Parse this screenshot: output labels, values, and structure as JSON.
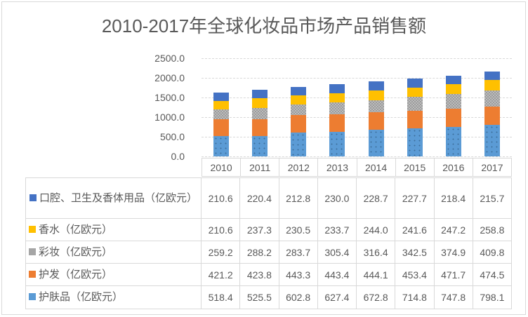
{
  "chart_data": {
    "type": "bar",
    "stacked": true,
    "title": "2010-2017年全球化妆品市场产品销售额",
    "categories": [
      "2010",
      "2011",
      "2012",
      "2013",
      "2014",
      "2015",
      "2016",
      "2017"
    ],
    "series": [
      {
        "key": "skincare",
        "label": "护肤品（亿欧元）",
        "color": "#5B9BD5",
        "pattern": "dots",
        "values": [
          518.4,
          525.5,
          602.8,
          627.4,
          672.8,
          714.8,
          747.8,
          798.1
        ]
      },
      {
        "key": "haircare",
        "label": "护发（亿欧元）",
        "color": "#ED7D31",
        "pattern": "solid",
        "values": [
          421.2,
          423.8,
          443.3,
          443.4,
          444.1,
          453.4,
          471.7,
          474.5
        ]
      },
      {
        "key": "color-makeup",
        "label": "彩妆（亿欧元）",
        "color": "#A5A5A5",
        "pattern": "checker",
        "values": [
          259.2,
          288.2,
          283.7,
          305.4,
          316.4,
          342.5,
          374.9,
          409.8
        ]
      },
      {
        "key": "perfume",
        "label": "香水（亿欧元）",
        "color": "#FFC000",
        "pattern": "solid",
        "values": [
          210.6,
          237.3,
          230.5,
          233.7,
          244.0,
          241.6,
          247.2,
          258.8
        ]
      },
      {
        "key": "oral-hygiene",
        "label": "口腔、卫生及香体用品（亿欧元）",
        "color": "#4472C4",
        "pattern": "solid",
        "values": [
          210.6,
          220.4,
          212.8,
          230.0,
          228.7,
          227.7,
          218.4,
          215.7
        ]
      }
    ],
    "ylim": [
      0,
      2500
    ],
    "ytick_interval": 500,
    "ytick_labels": [
      "2500.0",
      "2000.0",
      "1500.0",
      "1000.0",
      "500.0",
      "0.0"
    ],
    "grid": true,
    "gridline_style": "dashed",
    "legend_position": "data-table-left",
    "value_decimals": 1,
    "colors": {
      "text": "#595959",
      "border": "#d9d9d9"
    }
  }
}
